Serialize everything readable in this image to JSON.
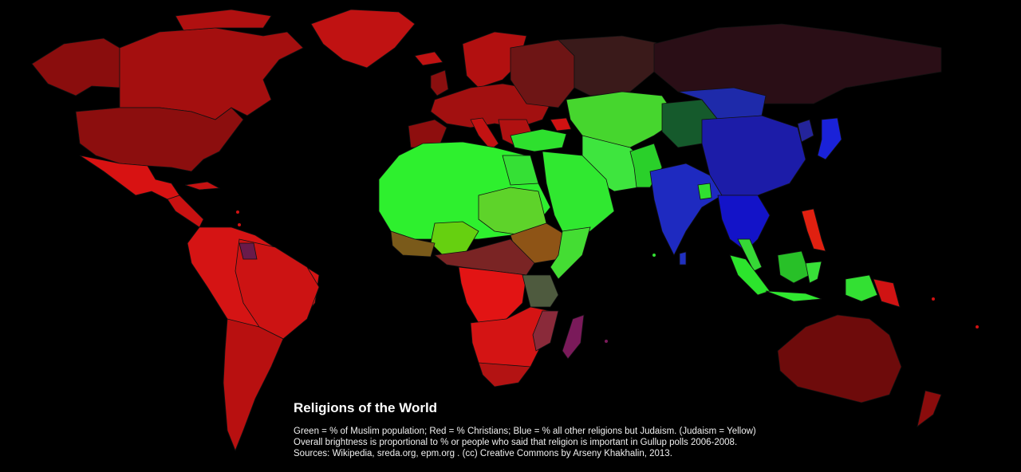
{
  "map": {
    "title": "Religions of the World",
    "legend_line": "Green = % of Muslim population; Red = % Christians; Blue = % all other religions but Judaism. (Judaism = Yellow)",
    "brightness_note": "Overall brightness is proportional to % or people who said that religion is important in Gullup polls 2006-2008.",
    "sources_line": "Sources: Wikipedia, sreda.org, epm.org . (cc) Creative Commons by Arseny Khakhalin, 2013.",
    "colors": {
      "background": "#000000",
      "muslim_green": "#33ee33",
      "christian_red": "#dd1111",
      "other_blue": "#1a1acc",
      "judaism_yellow": "#ffff00"
    }
  }
}
